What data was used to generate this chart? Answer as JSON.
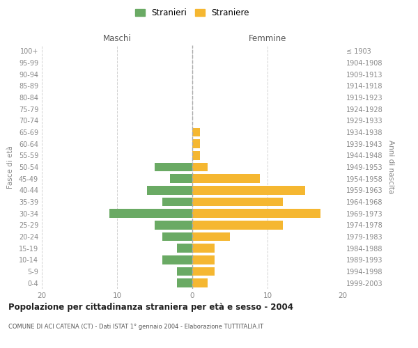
{
  "age_groups": [
    "0-4",
    "5-9",
    "10-14",
    "15-19",
    "20-24",
    "25-29",
    "30-34",
    "35-39",
    "40-44",
    "45-49",
    "50-54",
    "55-59",
    "60-64",
    "65-69",
    "70-74",
    "75-79",
    "80-84",
    "85-89",
    "90-94",
    "95-99",
    "100+"
  ],
  "birth_years": [
    "1999-2003",
    "1994-1998",
    "1989-1993",
    "1984-1988",
    "1979-1983",
    "1974-1978",
    "1969-1973",
    "1964-1968",
    "1959-1963",
    "1954-1958",
    "1949-1953",
    "1944-1948",
    "1939-1943",
    "1934-1938",
    "1929-1933",
    "1924-1928",
    "1919-1923",
    "1914-1918",
    "1909-1913",
    "1904-1908",
    "≤ 1903"
  ],
  "maschi": [
    2,
    2,
    4,
    2,
    4,
    5,
    11,
    4,
    6,
    3,
    5,
    0,
    0,
    0,
    0,
    0,
    0,
    0,
    0,
    0,
    0
  ],
  "femmine": [
    2,
    3,
    3,
    3,
    5,
    12,
    17,
    12,
    15,
    9,
    2,
    1,
    1,
    1,
    0,
    0,
    0,
    0,
    0,
    0,
    0
  ],
  "color_maschi": "#6aaa64",
  "color_femmine": "#f5b731",
  "title": "Popolazione per cittadinanza straniera per età e sesso - 2004",
  "subtitle": "COMUNE DI ACI CATENA (CT) - Dati ISTAT 1° gennaio 2004 - Elaborazione TUTTITALIA.IT",
  "xlabel_left": "Maschi",
  "xlabel_right": "Femmine",
  "ylabel_left": "Fasce di età",
  "ylabel_right": "Anni di nascita",
  "legend_maschi": "Stranieri",
  "legend_femmine": "Straniere",
  "xlim": 20,
  "background_color": "#ffffff",
  "grid_color": "#cccccc"
}
